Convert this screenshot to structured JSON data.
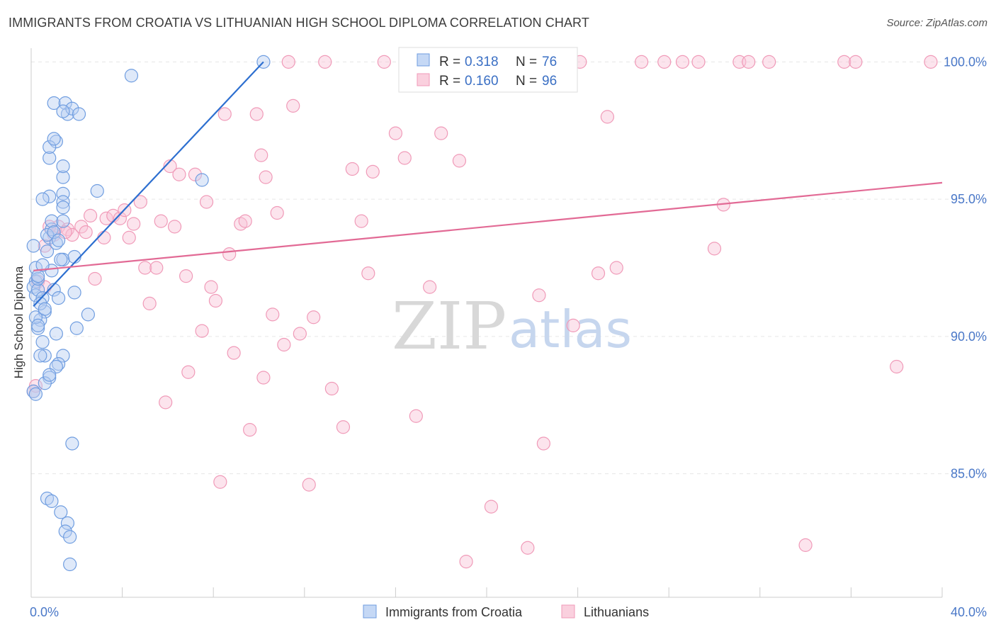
{
  "header": {
    "title": "IMMIGRANTS FROM CROATIA VS LITHUANIAN HIGH SCHOOL DIPLOMA CORRELATION CHART",
    "source": "Source: ZipAtlas.com"
  },
  "watermark": {
    "zip": "ZIP",
    "atlas": "atlas"
  },
  "chart_data": {
    "type": "scatter",
    "title": "IMMIGRANTS FROM CROATIA VS LITHUANIAN HIGH SCHOOL DIPLOMA CORRELATION CHART",
    "xlabel": "",
    "ylabel": "High School Diploma",
    "xlim": [
      0,
      40
    ],
    "ylim": [
      80.5,
      100.5
    ],
    "x_tick_labels": [
      {
        "value": 0,
        "label": "0.0%"
      },
      {
        "value": 40,
        "label": "40.0%"
      }
    ],
    "y_tick_labels": [
      {
        "value": 100,
        "label": "100.0%"
      },
      {
        "value": 95,
        "label": "95.0%"
      },
      {
        "value": 90,
        "label": "90.0%"
      },
      {
        "value": 85,
        "label": "85.0%"
      }
    ],
    "legend": {
      "placement": "top-center",
      "entries": [
        {
          "r_label": "R =",
          "r_value": "0.318",
          "n_label": "N =",
          "n_value": "76"
        },
        {
          "r_label": "R =",
          "r_value": "0.160",
          "n_label": "N =",
          "n_value": "96"
        }
      ]
    },
    "series": [
      {
        "name": "Immigrants from Croatia",
        "color": "#6f9de0",
        "trend": {
          "x0": 0.1,
          "y0": 91.1,
          "x1": 10.2,
          "y1": 100.0
        },
        "points": [
          [
            0.2,
            92.0
          ],
          [
            0.1,
            91.8
          ],
          [
            0.2,
            91.5
          ],
          [
            0.3,
            91.7
          ],
          [
            0.1,
            93.3
          ],
          [
            0.2,
            92.5
          ],
          [
            0.3,
            92.1
          ],
          [
            0.5,
            91.4
          ],
          [
            0.6,
            90.9
          ],
          [
            0.4,
            90.6
          ],
          [
            0.3,
            90.3
          ],
          [
            0.2,
            90.7
          ],
          [
            0.5,
            89.8
          ],
          [
            0.6,
            89.3
          ],
          [
            0.8,
            88.5
          ],
          [
            0.6,
            88.3
          ],
          [
            0.4,
            89.3
          ],
          [
            0.1,
            88.0
          ],
          [
            0.2,
            87.9
          ],
          [
            0.7,
            93.1
          ],
          [
            0.8,
            93.6
          ],
          [
            1.1,
            93.4
          ],
          [
            0.9,
            93.9
          ],
          [
            0.7,
            93.7
          ],
          [
            0.9,
            94.2
          ],
          [
            1.4,
            94.2
          ],
          [
            1.0,
            93.8
          ],
          [
            1.4,
            95.2
          ],
          [
            1.4,
            94.9
          ],
          [
            1.4,
            94.7
          ],
          [
            0.8,
            95.1
          ],
          [
            0.5,
            95.0
          ],
          [
            1.4,
            95.8
          ],
          [
            1.4,
            96.2
          ],
          [
            0.8,
            96.5
          ],
          [
            1.1,
            97.1
          ],
          [
            0.8,
            96.9
          ],
          [
            1.0,
            97.2
          ],
          [
            1.0,
            98.5
          ],
          [
            1.5,
            98.5
          ],
          [
            1.6,
            98.1
          ],
          [
            1.8,
            98.3
          ],
          [
            2.1,
            98.1
          ],
          [
            1.4,
            98.2
          ],
          [
            2.9,
            95.3
          ],
          [
            1.4,
            92.8
          ],
          [
            1.9,
            92.9
          ],
          [
            0.9,
            92.4
          ],
          [
            1.0,
            91.7
          ],
          [
            1.9,
            91.6
          ],
          [
            2.0,
            90.3
          ],
          [
            2.5,
            90.8
          ],
          [
            1.1,
            90.1
          ],
          [
            1.4,
            89.3
          ],
          [
            1.2,
            89.0
          ],
          [
            1.1,
            88.9
          ],
          [
            0.8,
            88.6
          ],
          [
            1.8,
            86.1
          ],
          [
            0.7,
            84.1
          ],
          [
            0.9,
            84.0
          ],
          [
            1.3,
            83.6
          ],
          [
            1.6,
            83.2
          ],
          [
            1.5,
            82.9
          ],
          [
            1.7,
            82.7
          ],
          [
            1.7,
            81.7
          ],
          [
            4.4,
            99.5
          ],
          [
            7.5,
            95.7
          ],
          [
            10.2,
            100.0
          ],
          [
            0.3,
            90.4
          ],
          [
            0.4,
            91.2
          ],
          [
            0.6,
            91.0
          ],
          [
            1.3,
            92.8
          ],
          [
            1.2,
            91.4
          ],
          [
            0.5,
            92.6
          ],
          [
            0.3,
            92.2
          ],
          [
            1.2,
            93.5
          ]
        ]
      },
      {
        "name": "Lithuanians",
        "color": "#f09ab8",
        "trend": {
          "x0": 0.1,
          "y0": 92.4,
          "x1": 40.0,
          "y1": 95.6
        },
        "points": [
          [
            0.1,
            88.0
          ],
          [
            0.2,
            88.2
          ],
          [
            0.3,
            92.0
          ],
          [
            0.6,
            91.8
          ],
          [
            0.6,
            93.3
          ],
          [
            1.0,
            93.7
          ],
          [
            1.2,
            94.0
          ],
          [
            1.6,
            93.9
          ],
          [
            1.8,
            93.7
          ],
          [
            2.2,
            94.0
          ],
          [
            2.6,
            94.4
          ],
          [
            2.8,
            92.1
          ],
          [
            3.2,
            93.6
          ],
          [
            3.3,
            94.3
          ],
          [
            3.6,
            94.4
          ],
          [
            3.9,
            94.3
          ],
          [
            4.1,
            94.6
          ],
          [
            4.3,
            93.6
          ],
          [
            4.5,
            94.1
          ],
          [
            4.8,
            94.9
          ],
          [
            5.0,
            92.5
          ],
          [
            5.2,
            91.2
          ],
          [
            5.5,
            92.5
          ],
          [
            5.7,
            94.2
          ],
          [
            5.9,
            87.6
          ],
          [
            6.1,
            96.2
          ],
          [
            6.3,
            94.0
          ],
          [
            6.5,
            95.9
          ],
          [
            6.8,
            92.2
          ],
          [
            6.9,
            88.7
          ],
          [
            7.2,
            95.9
          ],
          [
            7.5,
            90.2
          ],
          [
            7.7,
            94.9
          ],
          [
            7.9,
            91.8
          ],
          [
            8.1,
            91.3
          ],
          [
            8.3,
            84.7
          ],
          [
            8.5,
            98.1
          ],
          [
            8.7,
            93.0
          ],
          [
            8.9,
            89.4
          ],
          [
            9.2,
            94.1
          ],
          [
            9.4,
            94.2
          ],
          [
            9.6,
            86.6
          ],
          [
            9.9,
            98.1
          ],
          [
            10.1,
            96.6
          ],
          [
            10.2,
            88.5
          ],
          [
            10.3,
            95.8
          ],
          [
            10.6,
            90.8
          ],
          [
            10.8,
            94.5
          ],
          [
            11.1,
            89.7
          ],
          [
            11.3,
            100.0
          ],
          [
            11.5,
            98.4
          ],
          [
            11.8,
            90.1
          ],
          [
            12.2,
            84.6
          ],
          [
            12.4,
            90.7
          ],
          [
            12.9,
            100.0
          ],
          [
            13.2,
            88.1
          ],
          [
            13.7,
            86.7
          ],
          [
            14.1,
            96.1
          ],
          [
            14.5,
            94.2
          ],
          [
            14.8,
            92.3
          ],
          [
            15.0,
            96.0
          ],
          [
            15.5,
            100.0
          ],
          [
            16.0,
            97.4
          ],
          [
            16.4,
            96.5
          ],
          [
            16.9,
            87.1
          ],
          [
            17.2,
            100.0
          ],
          [
            17.5,
            91.8
          ],
          [
            18.0,
            97.4
          ],
          [
            18.5,
            100.0
          ],
          [
            18.8,
            96.4
          ],
          [
            19.1,
            81.8
          ],
          [
            19.6,
            100.0
          ],
          [
            20.2,
            83.8
          ],
          [
            20.6,
            100.0
          ],
          [
            21.3,
            100.0
          ],
          [
            21.8,
            82.3
          ],
          [
            22.3,
            91.5
          ],
          [
            22.5,
            86.1
          ],
          [
            23.5,
            100.0
          ],
          [
            23.8,
            90.4
          ],
          [
            24.1,
            100.0
          ],
          [
            24.9,
            92.3
          ],
          [
            25.3,
            98.0
          ],
          [
            25.7,
            92.5
          ],
          [
            26.8,
            100.0
          ],
          [
            27.8,
            100.0
          ],
          [
            28.6,
            100.0
          ],
          [
            29.3,
            100.0
          ],
          [
            30.0,
            93.2
          ],
          [
            30.4,
            94.8
          ],
          [
            31.1,
            100.0
          ],
          [
            31.5,
            100.0
          ],
          [
            32.4,
            100.0
          ],
          [
            34.0,
            82.4
          ],
          [
            35.7,
            100.0
          ],
          [
            36.2,
            100.0
          ]
        ]
      }
    ],
    "extra_points_lithuanians": [
      [
        0.8,
        94.0
      ],
      [
        1.5,
        93.8
      ],
      [
        2.4,
        93.8
      ],
      [
        38.0,
        88.9
      ],
      [
        39.5,
        100.0
      ]
    ]
  },
  "bottom_legend": {
    "items": [
      {
        "label": "Immigrants from Croatia"
      },
      {
        "label": "Lithuanians"
      }
    ]
  }
}
